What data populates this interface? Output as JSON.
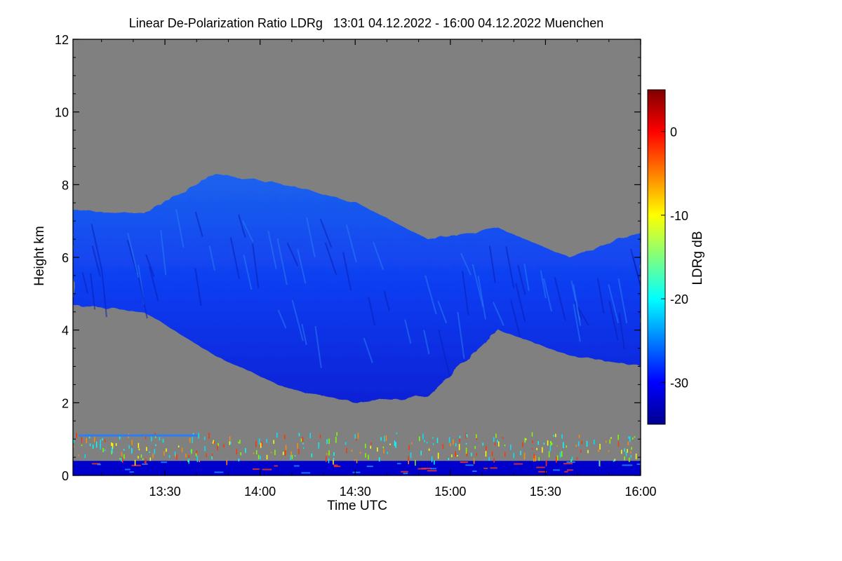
{
  "chart_data": {
    "type": "heatmap",
    "title": "Linear De-Polarization Ratio LDRg   13:01 04.12.2022 - 16:00 04.12.2022 Muenchen",
    "xlabel": "Time UTC",
    "ylabel": "Height km",
    "x_range": [
      "13:01",
      "16:00"
    ],
    "x_ticks": [
      "13:30",
      "14:00",
      "14:30",
      "15:00",
      "15:30",
      "16:00"
    ],
    "y_range": [
      0,
      12
    ],
    "y_ticks": [
      "0",
      "2",
      "4",
      "6",
      "8",
      "10",
      "12"
    ],
    "background_color": "#808080",
    "colorbar": {
      "label": "LDRg dB",
      "range": [
        -35,
        5
      ],
      "ticks": [
        "0",
        "-10",
        "-20",
        "-30"
      ],
      "colormap": "jet"
    },
    "features": [
      {
        "kind": "cloud",
        "time_start": "13:01",
        "time_end": "16:00",
        "base_km": [
          4.7,
          4.5,
          3.3,
          2.4,
          2.0,
          2.2,
          4.0,
          3.3,
          3.0
        ],
        "top_km": [
          7.3,
          7.2,
          8.3,
          8.0,
          7.5,
          6.5,
          6.8,
          6.0,
          6.7
        ],
        "ldr_db": -31
      },
      {
        "kind": "boundary_layer",
        "base_km": 0.0,
        "top_km": 0.4,
        "ldr_db": -32
      },
      {
        "kind": "clutter",
        "base_km": 0.4,
        "top_km": 1.2,
        "ldr_db": -12
      }
    ]
  }
}
